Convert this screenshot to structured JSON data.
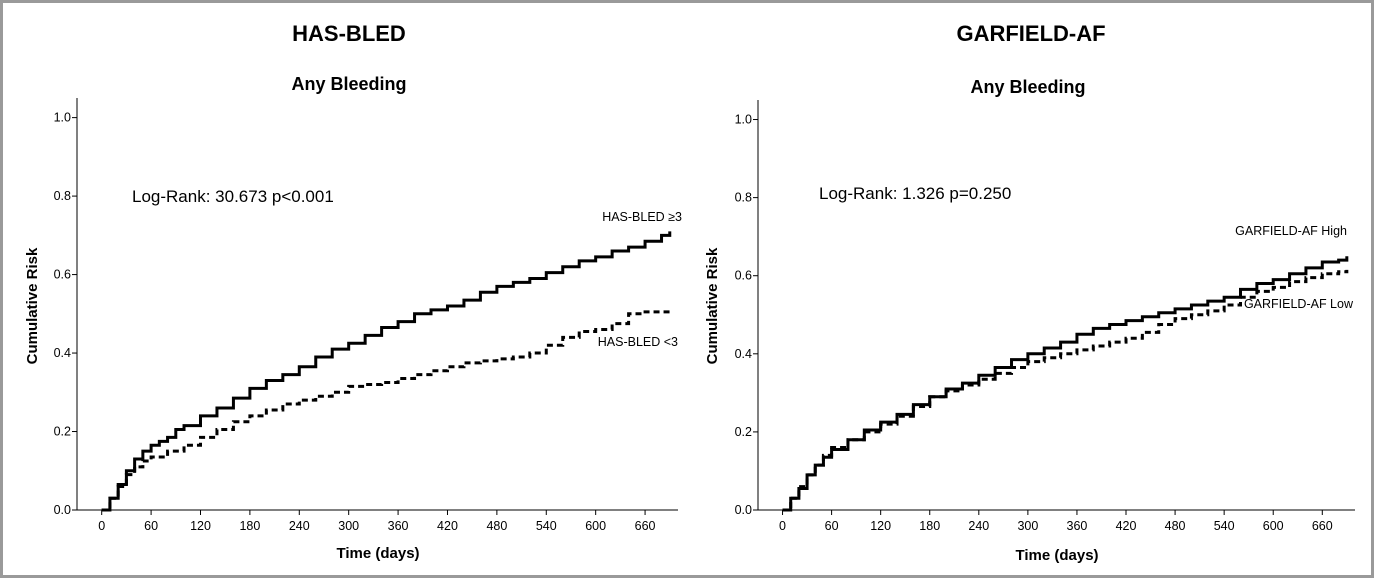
{
  "chart_data": [
    {
      "type": "line",
      "panel_title": "HAS-BLED",
      "title": "Any Bleeding",
      "xlabel": "Time (days)",
      "ylabel": "Cumulative Risk",
      "xlim": [
        -30,
        700
      ],
      "ylim": [
        0,
        1.05
      ],
      "xticks": [
        0,
        60,
        120,
        180,
        240,
        300,
        360,
        420,
        480,
        540,
        600,
        660
      ],
      "yticks": [
        "0.0",
        "0.2",
        "0.4",
        "0.6",
        "0.8",
        "1.0"
      ],
      "annotation": "Log-Rank: 30.673 p<0.001",
      "series": [
        {
          "name": "HAS-BLED ≥3",
          "style": "solid",
          "x": [
            0,
            10,
            20,
            30,
            40,
            50,
            60,
            70,
            80,
            90,
            100,
            120,
            140,
            160,
            180,
            200,
            220,
            240,
            260,
            280,
            300,
            320,
            340,
            360,
            380,
            400,
            420,
            440,
            460,
            480,
            500,
            520,
            540,
            560,
            580,
            600,
            620,
            640,
            660,
            680,
            690
          ],
          "y": [
            0.0,
            0.03,
            0.065,
            0.1,
            0.13,
            0.15,
            0.165,
            0.175,
            0.185,
            0.205,
            0.215,
            0.24,
            0.26,
            0.285,
            0.31,
            0.33,
            0.345,
            0.365,
            0.39,
            0.41,
            0.425,
            0.445,
            0.465,
            0.48,
            0.5,
            0.51,
            0.52,
            0.535,
            0.555,
            0.57,
            0.58,
            0.59,
            0.605,
            0.62,
            0.635,
            0.645,
            0.66,
            0.67,
            0.685,
            0.7,
            0.71
          ]
        },
        {
          "name": "HAS-BLED <3",
          "style": "dashed",
          "x": [
            0,
            10,
            20,
            30,
            40,
            50,
            60,
            80,
            100,
            120,
            140,
            160,
            180,
            200,
            220,
            240,
            260,
            280,
            300,
            320,
            340,
            360,
            380,
            400,
            420,
            440,
            460,
            480,
            500,
            520,
            540,
            560,
            580,
            600,
            620,
            640,
            660,
            680,
            690
          ],
          "y": [
            0.0,
            0.03,
            0.06,
            0.09,
            0.11,
            0.125,
            0.135,
            0.15,
            0.165,
            0.185,
            0.205,
            0.225,
            0.24,
            0.255,
            0.27,
            0.28,
            0.29,
            0.3,
            0.315,
            0.32,
            0.325,
            0.335,
            0.345,
            0.355,
            0.365,
            0.375,
            0.38,
            0.385,
            0.39,
            0.4,
            0.42,
            0.44,
            0.455,
            0.46,
            0.475,
            0.5,
            0.505,
            0.505,
            0.505
          ]
        }
      ]
    },
    {
      "type": "line",
      "panel_title": "GARFIELD-AF",
      "title": "Any Bleeding",
      "xlabel": "Time (days)",
      "ylabel": "Cumulative Risk",
      "xlim": [
        -30,
        700
      ],
      "ylim": [
        0,
        1.05
      ],
      "xticks": [
        0,
        60,
        120,
        180,
        240,
        300,
        360,
        420,
        480,
        540,
        600,
        660
      ],
      "yticks": [
        "0.0",
        "0.2",
        "0.4",
        "0.6",
        "0.8",
        "1.0"
      ],
      "annotation": "Log-Rank: 1.326 p=0.250",
      "series": [
        {
          "name": "GARFIELD-AF High",
          "style": "solid",
          "x": [
            0,
            10,
            20,
            30,
            40,
            50,
            60,
            80,
            100,
            120,
            140,
            160,
            180,
            200,
            220,
            240,
            260,
            280,
            300,
            320,
            340,
            360,
            380,
            400,
            420,
            440,
            460,
            480,
            500,
            520,
            540,
            560,
            580,
            600,
            620,
            640,
            660,
            680,
            690
          ],
          "y": [
            0.0,
            0.03,
            0.055,
            0.09,
            0.115,
            0.135,
            0.155,
            0.18,
            0.205,
            0.225,
            0.245,
            0.27,
            0.29,
            0.31,
            0.325,
            0.345,
            0.365,
            0.385,
            0.4,
            0.415,
            0.43,
            0.45,
            0.465,
            0.475,
            0.485,
            0.495,
            0.505,
            0.515,
            0.525,
            0.535,
            0.545,
            0.565,
            0.58,
            0.59,
            0.605,
            0.62,
            0.635,
            0.64,
            0.65
          ]
        },
        {
          "name": "GARFIELD-AF Low",
          "style": "dashed",
          "x": [
            0,
            10,
            20,
            30,
            40,
            50,
            60,
            80,
            100,
            120,
            140,
            160,
            180,
            200,
            220,
            240,
            260,
            280,
            300,
            320,
            340,
            360,
            380,
            400,
            420,
            440,
            460,
            480,
            500,
            520,
            540,
            560,
            580,
            600,
            620,
            640,
            660,
            680,
            690
          ],
          "y": [
            0.0,
            0.03,
            0.06,
            0.09,
            0.115,
            0.14,
            0.16,
            0.18,
            0.2,
            0.22,
            0.24,
            0.265,
            0.29,
            0.305,
            0.32,
            0.335,
            0.35,
            0.365,
            0.38,
            0.39,
            0.4,
            0.41,
            0.42,
            0.43,
            0.44,
            0.455,
            0.475,
            0.49,
            0.5,
            0.51,
            0.525,
            0.545,
            0.56,
            0.57,
            0.585,
            0.595,
            0.605,
            0.61,
            0.615
          ]
        }
      ]
    }
  ]
}
